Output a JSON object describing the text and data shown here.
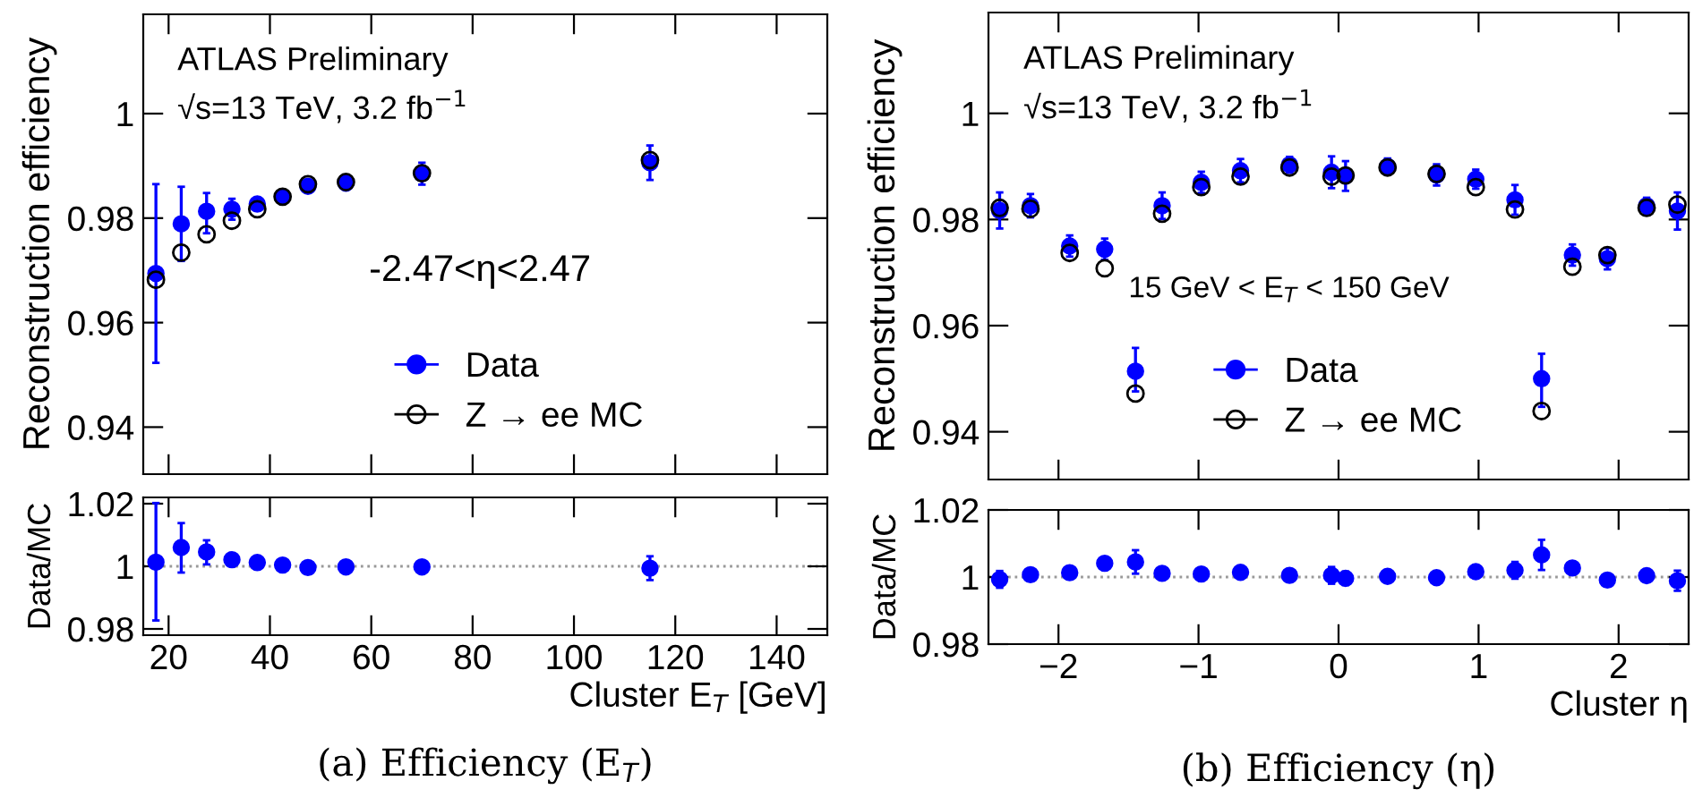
{
  "chart_data": [
    {
      "type": "scatter",
      "ylabel": "Reconstruction efficiency",
      "xlim": [
        15,
        150
      ],
      "xticks": [
        20,
        40,
        60,
        80,
        100,
        120,
        140
      ],
      "ylim": [
        0.931,
        1.019
      ],
      "yticks": [
        0.94,
        0.96,
        0.98,
        1
      ],
      "tick_labels": "y",
      "marker": "circle",
      "legend": "bottom",
      "grid": false,
      "x": [
        17.5,
        22.5,
        27.5,
        32.5,
        37.5,
        42.5,
        47.5,
        55,
        70,
        115
      ],
      "annotations": [
        "ATLAS Preliminary",
        "√s=13 TeV, 3.2 fb$^{−1}$",
        "-2.47<η<2.47"
      ],
      "series": [
        {
          "name": "Data",
          "color": "#0000ff",
          "values": [
            0.9694,
            0.9789,
            0.9813,
            0.9817,
            0.9827,
            0.9841,
            0.9861,
            0.9867,
            0.9885,
            0.9906
          ],
          "errors": [
            [
              0.9523,
              0.9865
            ],
            [
              0.9718,
              0.986
            ],
            [
              0.9771,
              0.9848
            ],
            0.002,
            0.001,
            0.0008,
            0.0008,
            0.0008,
            0.0021,
            0.0033
          ]
        },
        {
          "name": "Z → ee MC",
          "color": "#000000",
          "values": [
            0.9682,
            0.9734,
            0.9769,
            0.9795,
            0.9817,
            0.9841,
            0.9865,
            0.9869,
            0.9886,
            0.9911
          ]
        }
      ]
    },
    {
      "type": "scatter",
      "ylabel": "Data/MC",
      "xlabel": "Cluster E$_{T}$ [GeV]",
      "xlim": [
        15,
        150
      ],
      "xticks": [
        20,
        40,
        60,
        80,
        100,
        120,
        140
      ],
      "ylim": [
        0.978,
        1.022
      ],
      "yticks": [
        0.98,
        1,
        1.02
      ],
      "marker": "circle",
      "grid": false,
      "x": [
        17.5,
        22.5,
        27.5,
        32.5,
        37.5,
        42.5,
        47.5,
        55,
        70,
        115
      ],
      "ref_lines": [
        {
          "axis": "y",
          "value": 1,
          "label": null,
          "line_style": "dotted",
          "color": "#999999"
        }
      ],
      "annotations": [
        "(a) Efficiency (E$_{T}$)"
      ],
      "series": [
        {
          "color": "#0000ff",
          "values": [
            1.0013,
            1.006,
            1.0046,
            1.0021,
            1.0012,
            1.0004,
            0.9996,
            0.9998,
            0.9998,
            0.9994
          ],
          "errors": [
            [
              0.9827,
              1.0202
            ],
            [
              0.998,
              1.0138
            ],
            [
              1.0006,
              1.0083
            ],
            0.0008,
            0.0006,
            0.0005,
            0.0005,
            0.0005,
            0.0012,
            0.0038
          ]
        }
      ]
    },
    {
      "type": "scatter",
      "ylabel": "Reconstruction efficiency",
      "xlim": [
        -2.5,
        2.5
      ],
      "xticks": [
        -2,
        -1,
        0,
        1,
        2
      ],
      "ylim": [
        0.931,
        1.019
      ],
      "yticks": [
        0.94,
        0.96,
        0.98,
        1
      ],
      "tick_labels": "y",
      "marker": "circle",
      "legend": "bottom",
      "grid": false,
      "x": [
        -2.42,
        -2.2,
        -1.92,
        -1.67,
        -1.45,
        -1.26,
        -0.98,
        -0.7,
        -0.35,
        -0.05,
        0.05,
        0.35,
        0.7,
        0.98,
        1.26,
        1.45,
        1.67,
        1.92,
        2.2,
        2.42
      ],
      "annotations": [
        "ATLAS Preliminary",
        "√s=13 TeV, 3.2 fb$^{−1}$",
        "15 GeV < E$_{T}$ < 150 GeV"
      ],
      "series": [
        {
          "name": "Data",
          "color": "#0000ff",
          "values": [
            0.9817,
            0.9826,
            0.975,
            0.9744,
            0.9514,
            0.9826,
            0.987,
            0.9892,
            0.9903,
            0.9889,
            0.9882,
            0.99,
            0.9884,
            0.9876,
            0.9837,
            0.95,
            0.9733,
            0.9726,
            0.9826,
            0.9816
          ],
          "errors": [
            0.0034,
            0.0022,
            0.002,
            0.002,
            [
              0.9476,
              0.9558
            ],
            0.0025,
            0.002,
            0.0022,
            0.0015,
            0.003,
            0.0028,
            0.0015,
            0.002,
            0.0018,
            0.0028,
            [
              0.9447,
              0.9547
            ],
            0.002,
            0.002,
            0.0015,
            0.0035
          ]
        },
        {
          "name": "Z → ee MC",
          "color": "#000000",
          "values": [
            0.9822,
            0.982,
            0.9737,
            0.9708,
            0.9472,
            0.9811,
            0.9861,
            0.9881,
            0.9898,
            0.9881,
            0.9883,
            0.9898,
            0.9886,
            0.9861,
            0.9819,
            0.9439,
            0.9711,
            0.9733,
            0.9822,
            0.9828
          ]
        }
      ]
    },
    {
      "type": "scatter",
      "ylabel": "Data/MC",
      "xlabel": "Cluster η",
      "xlim": [
        -2.5,
        2.5
      ],
      "xticks": [
        {
          "value": -2,
          "label": "−2"
        },
        {
          "value": -1,
          "label": "−1"
        },
        0,
        1,
        2
      ],
      "ylim": [
        0.98,
        1.02
      ],
      "yticks": [
        0.98,
        1,
        1.02
      ],
      "marker": "circle",
      "grid": false,
      "x": [
        -2.42,
        -2.2,
        -1.92,
        -1.67,
        -1.45,
        -1.26,
        -0.98,
        -0.7,
        -0.35,
        -0.05,
        0.05,
        0.35,
        0.7,
        0.98,
        1.26,
        1.45,
        1.67,
        1.92,
        2.2,
        2.42
      ],
      "ref_lines": [
        {
          "axis": "y",
          "value": 1,
          "label": null,
          "line_style": "dotted",
          "color": "#999999"
        }
      ],
      "annotations": [
        "(b) Efficiency (η)"
      ],
      "series": [
        {
          "color": "#0000ff",
          "values": [
            0.9993,
            1.0007,
            1.0013,
            1.0041,
            1.0045,
            1.0011,
            1.0009,
            1.0014,
            1.0005,
            1.0005,
            0.9996,
            1.0002,
            0.9998,
            1.0016,
            1.002,
            1.0066,
            1.0027,
            0.9991,
            1.0004,
            0.9989
          ],
          "errors": [
            0.0025,
            0.001,
            0.001,
            0.001,
            0.0035,
            0.001,
            0.001,
            0.001,
            0.0008,
            0.0025,
            0.002,
            0.0008,
            0.0008,
            0.001,
            0.0025,
            0.0045,
            0.001,
            0.001,
            0.0008,
            0.003
          ]
        }
      ]
    }
  ]
}
